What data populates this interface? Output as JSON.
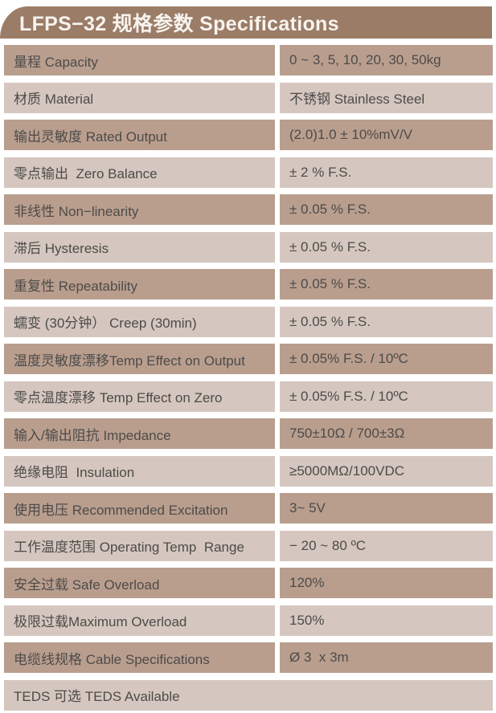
{
  "header": {
    "title": "LFPS−32 规格参数 Specifications"
  },
  "colors": {
    "header_bg": "#9a7c67",
    "header_text": "#f8f3ee",
    "row_dark": "#b99e8e",
    "row_light": "#d5c7bf",
    "cell_text": "#4d4b49"
  },
  "table": {
    "rows": [
      {
        "label": "量程 Capacity",
        "value": "0 ~ 3, 5, 10, 20, 30, 50kg"
      },
      {
        "label": "材质 Material",
        "value": "不锈钢 Stainless Steel"
      },
      {
        "label": "输出灵敏度 Rated Output",
        "value": "(2.0)1.0 ± 10%mV/V"
      },
      {
        "label": "零点输出  Zero Balance",
        "value": "± 2 % F.S."
      },
      {
        "label": "非线性 Non−linearity",
        "value": "± 0.05 % F.S."
      },
      {
        "label": "滞后 Hysteresis",
        "value": "± 0.05 % F.S."
      },
      {
        "label": "重复性 Repeatability",
        "value": "± 0.05 % F.S."
      },
      {
        "label": "蠕变 (30分钟） Creep (30min)",
        "value": "± 0.05 % F.S."
      },
      {
        "label": "温度灵敏度漂移Temp Effect on Output",
        "value": "± 0.05% F.S. / 10ºC"
      },
      {
        "label": "零点温度漂移 Temp Effect on Zero",
        "value": "± 0.05% F.S. / 10ºC"
      },
      {
        "label": "输入/输出阻抗 Impedance",
        "value": "750±10Ω / 700±3Ω"
      },
      {
        "label": "绝缘电阻  Insulation",
        "value": "≥5000MΩ/100VDC"
      },
      {
        "label": "使用电压 Recommended Excitation",
        "value": "3~ 5V"
      },
      {
        "label": "工作温度范围 Operating Temp  Range",
        "value": "− 20 ~ 80 ºC"
      },
      {
        "label": "安全过载 Safe Overload",
        "value": "120%"
      },
      {
        "label": "极限过载Maximum Overload",
        "value": "150%"
      },
      {
        "label": "电缆线规格 Cable Specifications",
        "value": "Ø 3  x 3m"
      },
      {
        "label": "TEDS 可选 TEDS Available",
        "value": null,
        "full_width": true
      }
    ]
  }
}
